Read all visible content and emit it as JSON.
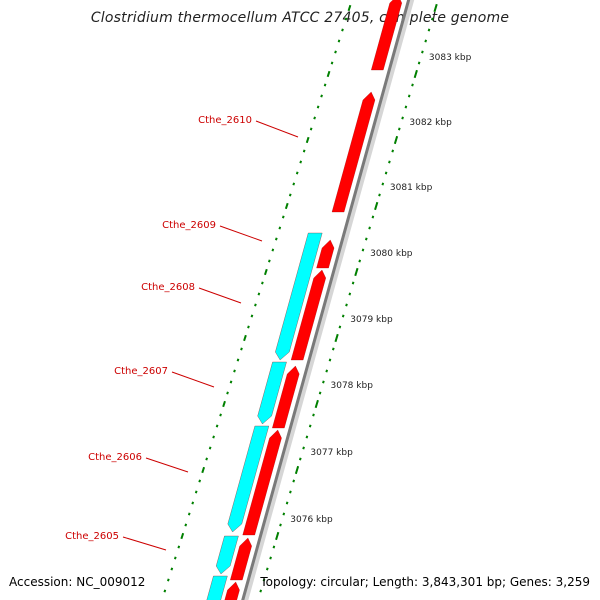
{
  "title": "Clostridium thermocellum ATCC 27405, complete genome",
  "footer": {
    "accession": "Accession: NC_009012",
    "topology": "Topology: circular; Length: 3,843,301 bp; Genes: 3,259"
  },
  "colors": {
    "forward_gene": "#ff0000",
    "reverse_gene": "#00ffff",
    "backbone": "#7a7a7a",
    "tick": "#008000",
    "gene_label": "#cc0000"
  },
  "scale": {
    "labels": [
      {
        "text": "3083 kbp",
        "kbp": 3083
      },
      {
        "text": "3082 kbp",
        "kbp": 3082
      },
      {
        "text": "3081 kbp",
        "kbp": 3081
      },
      {
        "text": "3080 kbp",
        "kbp": 3080
      },
      {
        "text": "3079 kbp",
        "kbp": 3079
      },
      {
        "text": "3078 kbp",
        "kbp": 3078
      },
      {
        "text": "3077 kbp",
        "kbp": 3077
      },
      {
        "text": "3076 kbp",
        "kbp": 3076
      }
    ]
  },
  "gene_labels": [
    {
      "text": "Cthe_2610"
    },
    {
      "text": "Cthe_2609"
    },
    {
      "text": "Cthe_2608"
    },
    {
      "text": "Cthe_2607"
    },
    {
      "text": "Cthe_2606"
    },
    {
      "text": "Cthe_2605"
    }
  ]
}
